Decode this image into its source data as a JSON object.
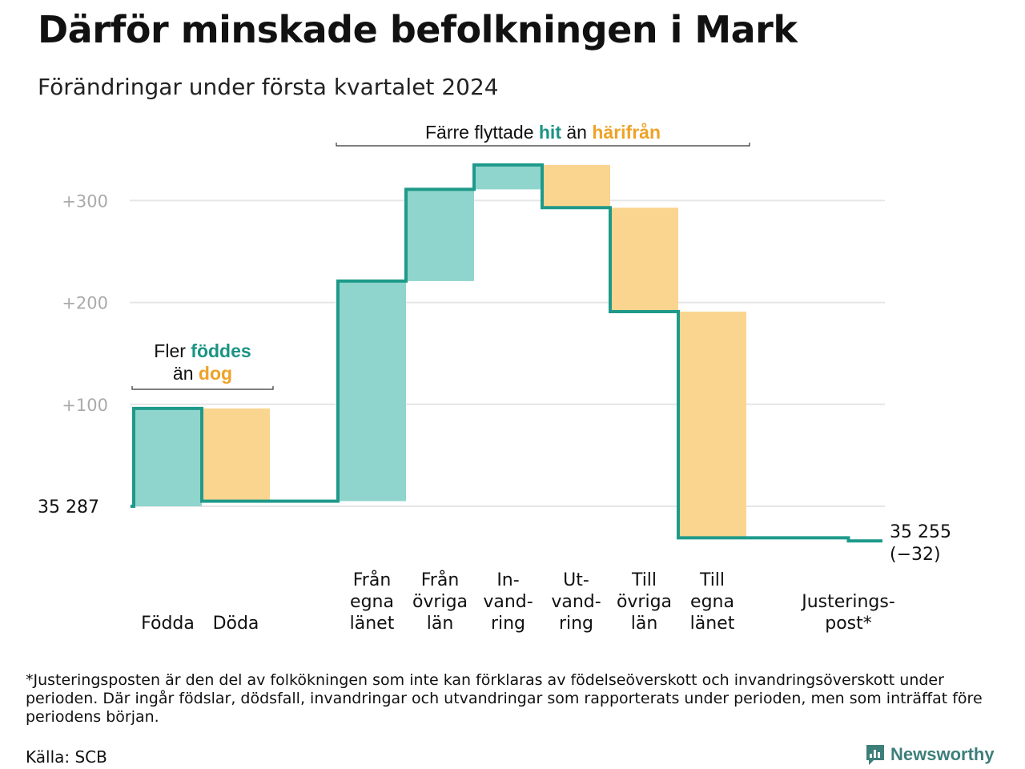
{
  "title": "Därför minskade befolkningen i Mark",
  "subtitle": "Förändringar under första kvartalet 2024",
  "colors": {
    "increase": "#8fd5cd",
    "decrease": "#f9d58f",
    "line": "#1f9a8a",
    "grid": "#e6e6e6",
    "teal_text": "#1a9484",
    "orange_text": "#efa227"
  },
  "chart_data": {
    "type": "waterfall",
    "start_label": "35  287",
    "end_label": "35 255",
    "end_change": "(−32)",
    "y_ticks": [
      100,
      200,
      300
    ],
    "y_tick_labels": [
      "+100",
      "+200",
      "+300"
    ],
    "ylim": [
      -60,
      335
    ],
    "grid": true,
    "steps": [
      {
        "label_lines": [
          "Födda"
        ],
        "value": 96,
        "kind": "increase"
      },
      {
        "label_lines": [
          "Döda"
        ],
        "value": -91,
        "kind": "decrease"
      },
      {
        "label_lines": [],
        "value": 0,
        "kind": "gap"
      },
      {
        "label_lines": [
          "Från",
          "egna",
          "länet"
        ],
        "value": 216,
        "kind": "increase"
      },
      {
        "label_lines": [
          "Från",
          "övriga",
          "län"
        ],
        "value": 90,
        "kind": "increase"
      },
      {
        "label_lines": [
          "In-",
          "vand-",
          "ring"
        ],
        "value": 24,
        "kind": "increase"
      },
      {
        "label_lines": [
          "Ut-",
          "vand-",
          "ring"
        ],
        "value": -42,
        "kind": "decrease"
      },
      {
        "label_lines": [
          "Till",
          "övriga",
          "län"
        ],
        "value": -102,
        "kind": "decrease"
      },
      {
        "label_lines": [
          "Till",
          "egna",
          "länet"
        ],
        "value": -222,
        "kind": "decrease"
      },
      {
        "label_lines": [],
        "value": 0,
        "kind": "gap"
      },
      {
        "label_lines": [
          "Justerings-",
          "post*"
        ],
        "value": -3,
        "kind": "adjustment"
      }
    ],
    "annotations": [
      {
        "lines": [
          [
            {
              "text": "Fler ",
              "tone": "plain"
            },
            {
              "text": "föddes",
              "tone": "teal"
            }
          ],
          [
            {
              "text": "än ",
              "tone": "plain"
            },
            {
              "text": "dog",
              "tone": "orange"
            }
          ]
        ],
        "from_step": 0,
        "to_step": 1
      },
      {
        "lines": [
          [
            {
              "text": "Färre flyttade ",
              "tone": "plain"
            },
            {
              "text": "hit",
              "tone": "teal"
            },
            {
              "text": " än ",
              "tone": "plain"
            },
            {
              "text": "härifrån",
              "tone": "orange"
            }
          ]
        ],
        "from_step": 3,
        "to_step": 8
      }
    ]
  },
  "footnote": "*Justeringsposten är den del av folkökningen som inte kan förklaras av födelseöverskott och invandringsöverskott under perioden. Där ingår födslar, dödsfall, invandringar och utvandringar som rapporterats under perioden, men som inträffat före periodens början.",
  "source": "Källa: SCB",
  "brand": {
    "name": "Newsworthy",
    "icon": "bar-chart-speech-bubble-icon"
  }
}
